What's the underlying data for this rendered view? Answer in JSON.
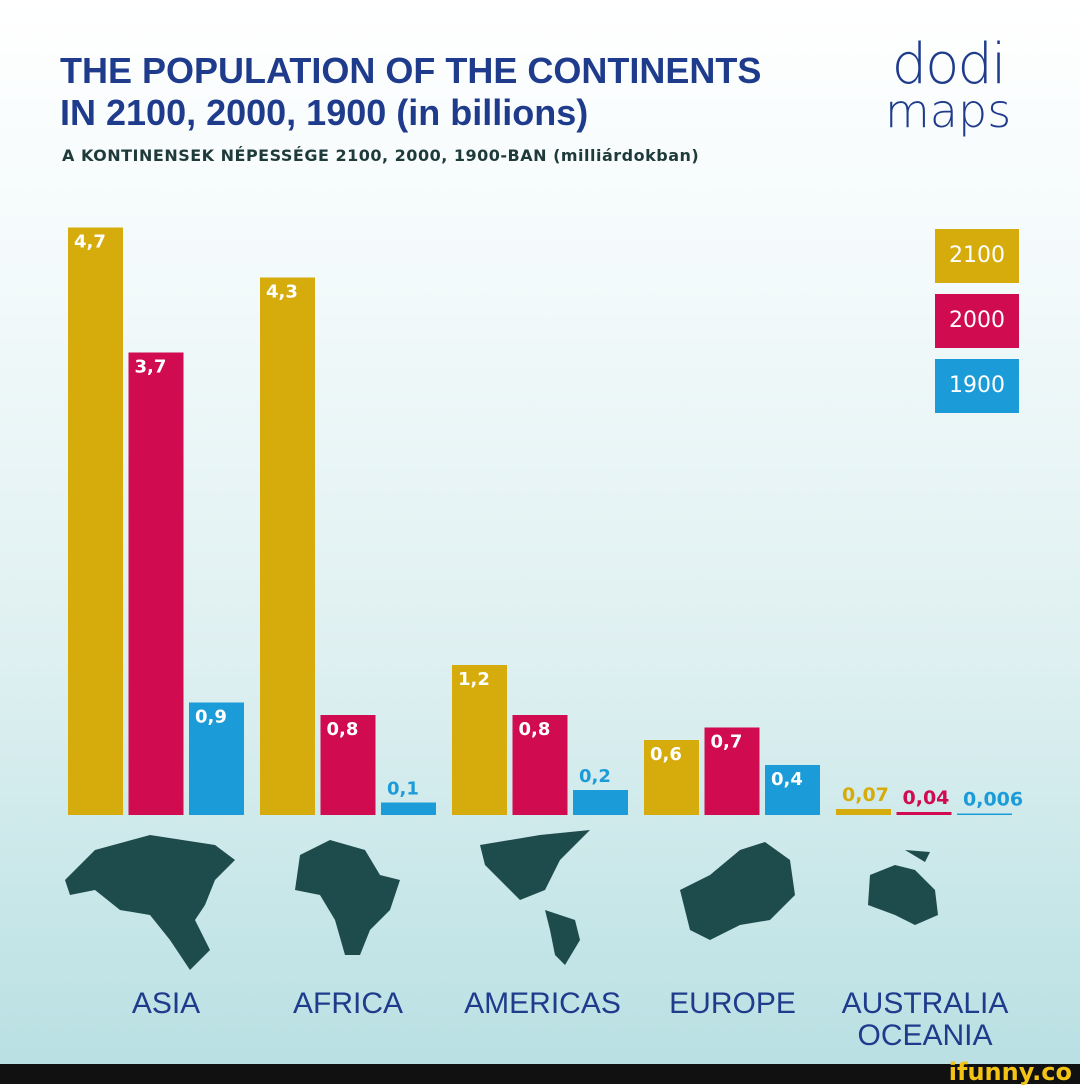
{
  "title_line1": "THE POPULATION OF THE CONTINENTS",
  "title_line2": "IN 2100, 2000, 1900 (in billions)",
  "subtitle": "A KONTINENSEK NÉPESSÉGE 2100, 2000, 1900-BAN (milliárdokban)",
  "logo": {
    "line1": "dodi",
    "line2": "maps"
  },
  "watermark": "ifunny.co",
  "chart_data": {
    "type": "bar",
    "title": "THE POPULATION OF THE CONTINENTS IN 2100, 2000, 1900 (in billions)",
    "categories": [
      "ASIA",
      "AFRICA",
      "AMERICAS",
      "EUROPE",
      "AUSTRALIA OCEANIA"
    ],
    "series": [
      {
        "name": "2100",
        "color": "#d6ab0c",
        "values": [
          4.7,
          4.3,
          1.2,
          0.6,
          0.07
        ],
        "labels": [
          "4,7",
          "4,3",
          "1,2",
          "0,6",
          "0,07"
        ]
      },
      {
        "name": "2000",
        "color": "#d00b4f",
        "values": [
          3.7,
          0.8,
          0.8,
          0.7,
          0.04
        ],
        "labels": [
          "3,7",
          "0,8",
          "0,8",
          "0,7",
          "0,04"
        ]
      },
      {
        "name": "1900",
        "color": "#1b9bd8",
        "values": [
          0.9,
          0.1,
          0.2,
          0.4,
          0.006
        ],
        "labels": [
          "0,9",
          "0,1",
          "0,2",
          "0,4",
          "0,006"
        ]
      }
    ],
    "ylim": [
      0,
      4.7
    ],
    "grid": false,
    "legend_position": "top-right",
    "category_labels": [
      [
        "ASIA"
      ],
      [
        "AFRICA"
      ],
      [
        "AMERICAS"
      ],
      [
        "EUROPE"
      ],
      [
        "AUSTRALIA",
        "OCEANIA"
      ]
    ]
  }
}
